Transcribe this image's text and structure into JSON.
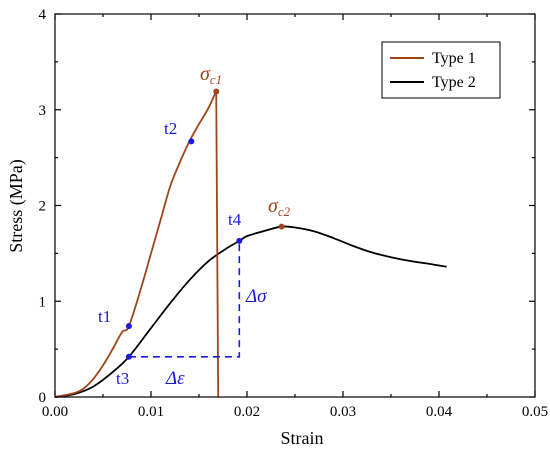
{
  "chart_data": {
    "type": "line",
    "title": "",
    "xlabel": "Strain",
    "ylabel": "Stress (MPa)",
    "xlim": [
      0.0,
      0.05
    ],
    "ylim": [
      0,
      4
    ],
    "x_ticks": [
      "0.00",
      "0.01",
      "0.02",
      "0.03",
      "0.04",
      "0.05"
    ],
    "y_ticks": [
      "0",
      "1",
      "2",
      "3",
      "4"
    ],
    "grid": false,
    "legend": {
      "placement": "top-right",
      "entries": [
        "Type 1",
        "Type 2"
      ]
    },
    "colors": {
      "type1": "#a0451a",
      "type2": "#000000",
      "annotation": "#1a1adb"
    },
    "series": [
      {
        "name": "Type 1",
        "x": [
          0.0,
          0.002,
          0.003,
          0.004,
          0.005,
          0.006,
          0.007,
          0.0077,
          0.009,
          0.01,
          0.011,
          0.012,
          0.013,
          0.014,
          0.015,
          0.016,
          0.0168,
          0.0168,
          0.017
        ],
        "y": [
          0.0,
          0.04,
          0.09,
          0.19,
          0.33,
          0.5,
          0.68,
          0.74,
          1.15,
          1.5,
          1.85,
          2.2,
          2.45,
          2.67,
          2.85,
          3.02,
          3.19,
          3.1,
          0.0
        ]
      },
      {
        "name": "Type 2",
        "x": [
          0.0,
          0.002,
          0.004,
          0.006,
          0.0077,
          0.01,
          0.012,
          0.014,
          0.016,
          0.018,
          0.0192,
          0.02,
          0.022,
          0.0236,
          0.025,
          0.027,
          0.029,
          0.031,
          0.033,
          0.035,
          0.037,
          0.039,
          0.0408
        ],
        "y": [
          0.0,
          0.03,
          0.11,
          0.26,
          0.42,
          0.72,
          0.98,
          1.22,
          1.42,
          1.56,
          1.63,
          1.68,
          1.74,
          1.78,
          1.77,
          1.73,
          1.66,
          1.58,
          1.51,
          1.46,
          1.42,
          1.39,
          1.36
        ]
      }
    ],
    "points": [
      {
        "label": "t1",
        "x": 0.0077,
        "y": 0.74,
        "color": "#1a1adb"
      },
      {
        "label": "t2",
        "x": 0.0142,
        "y": 2.67,
        "color": "#1a1adb"
      },
      {
        "label": "t3",
        "x": 0.0077,
        "y": 0.42,
        "color": "#1a1adb"
      },
      {
        "label": "t4",
        "x": 0.0192,
        "y": 1.63,
        "color": "#1a1adb"
      },
      {
        "label": "σc1",
        "x": 0.0168,
        "y": 3.19,
        "color": "#a0451a"
      },
      {
        "label": "σc2",
        "x": 0.0236,
        "y": 1.78,
        "color": "#a0451a"
      }
    ],
    "annotations": {
      "sigma_c1_main": "σ",
      "sigma_c1_sub": "c1",
      "sigma_c2_main": "σ",
      "sigma_c2_sub": "c2",
      "delta_sigma": "Δσ",
      "delta_epsilon": "Δε"
    }
  }
}
